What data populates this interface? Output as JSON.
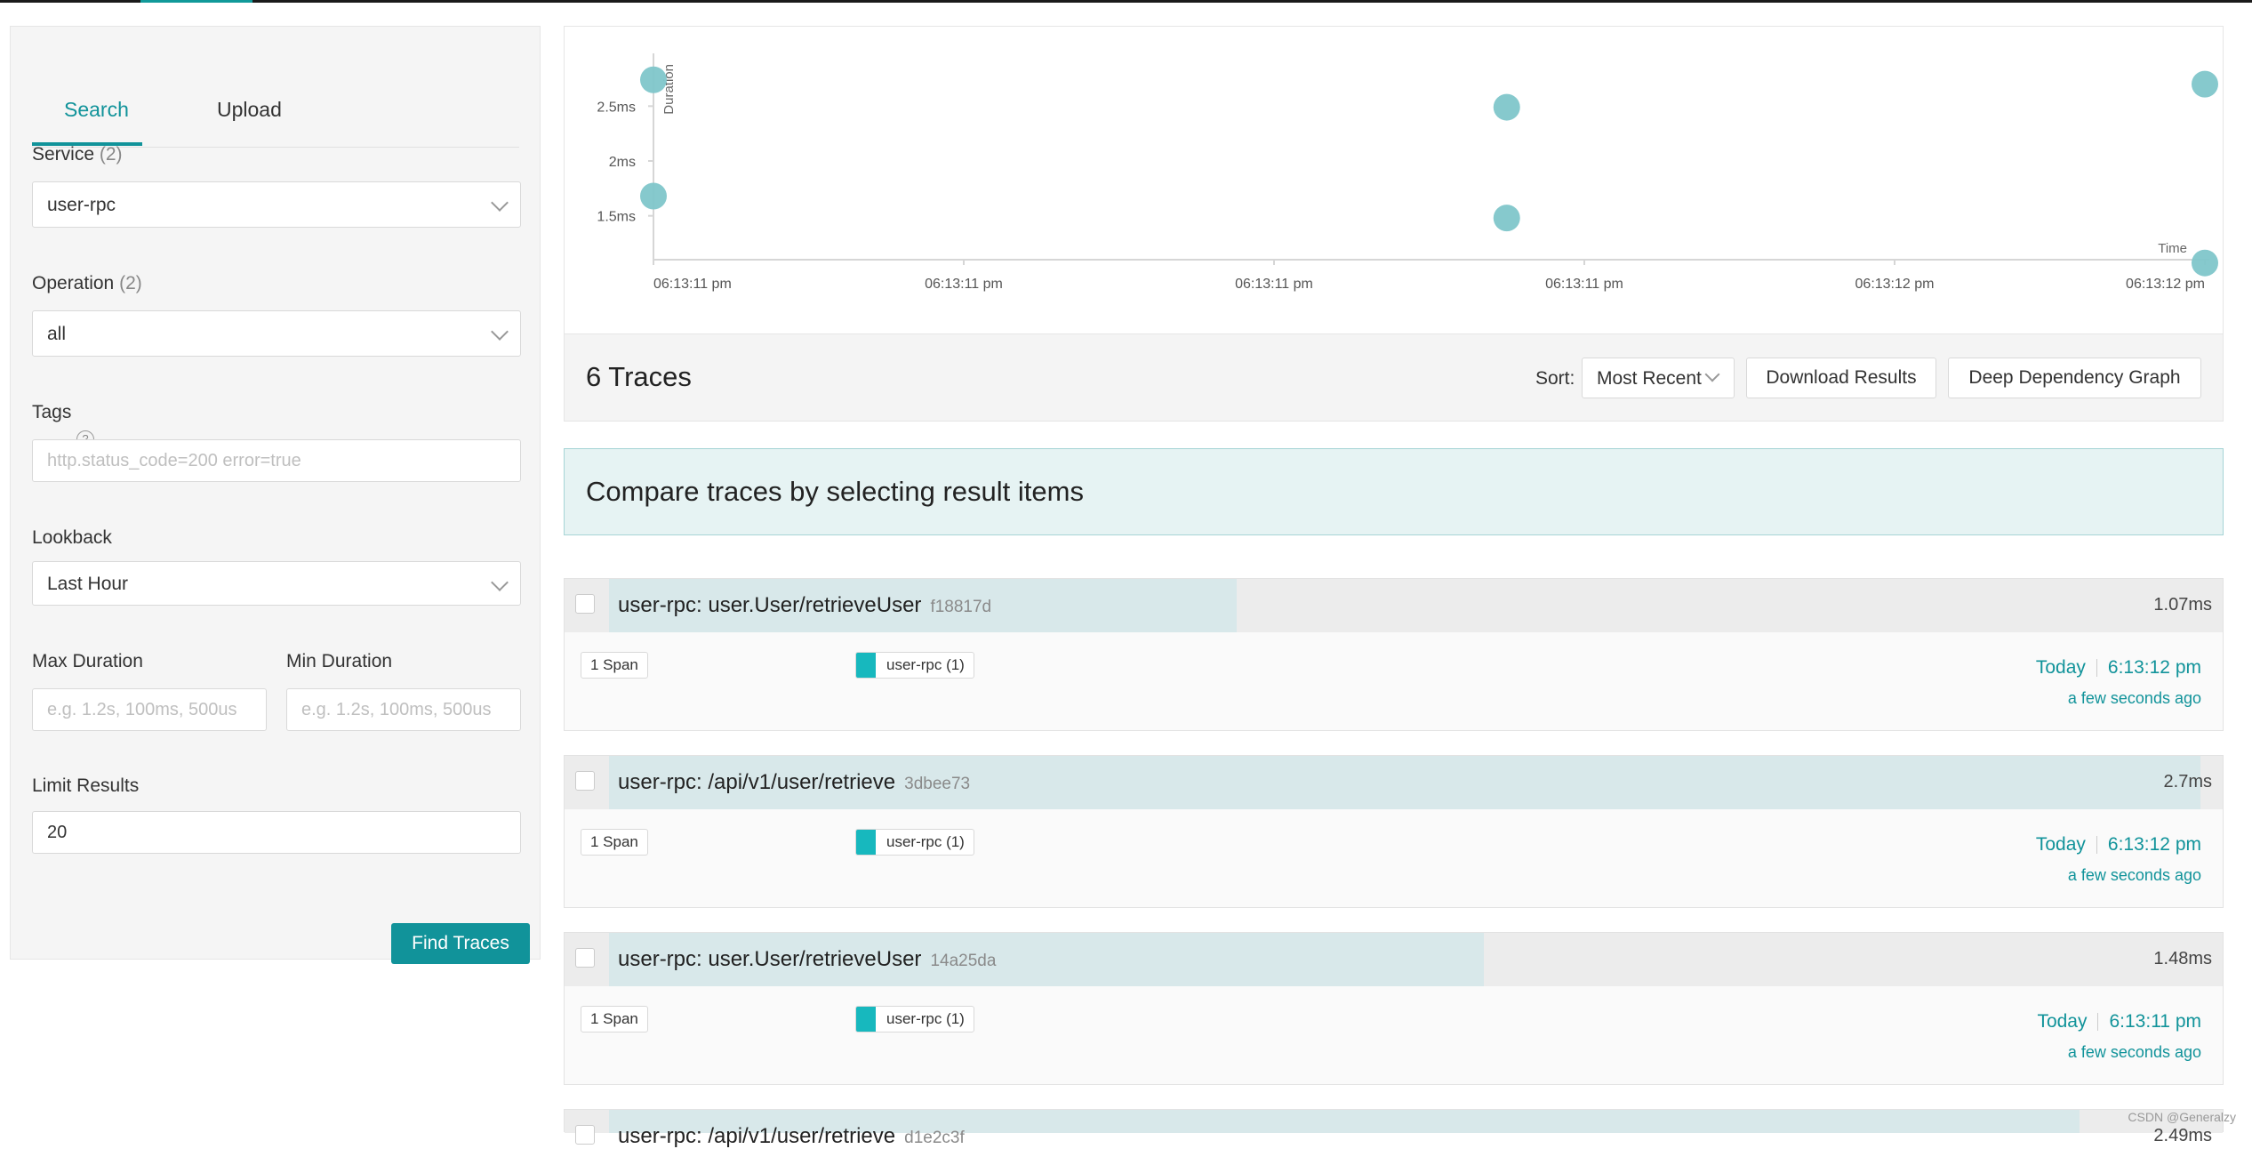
{
  "tabs": {
    "search": "Search",
    "upload": "Upload"
  },
  "form": {
    "service_label": "Service",
    "service_count": "(2)",
    "service_value": "user-rpc",
    "operation_label": "Operation",
    "operation_count": "(2)",
    "operation_value": "all",
    "tags_label": "Tags",
    "tags_help": "?",
    "tags_placeholder": "http.status_code=200 error=true",
    "lookback_label": "Lookback",
    "lookback_value": "Last Hour",
    "max_duration_label": "Max Duration",
    "max_duration_placeholder": "e.g. 1.2s, 100ms, 500us",
    "min_duration_label": "Min Duration",
    "min_duration_placeholder": "e.g. 1.2s, 100ms, 500us",
    "limit_label": "Limit Results",
    "limit_value": "20",
    "find_button": "Find Traces"
  },
  "chart_data": {
    "type": "scatter",
    "ylabel": "Duration",
    "xlabel": "Time",
    "yticks": [
      "1.5ms",
      "2ms",
      "2.5ms"
    ],
    "ytick_values": [
      1.5,
      2.0,
      2.5
    ],
    "xticks": [
      "06:13:11 pm",
      "06:13:11 pm",
      "06:13:11 pm",
      "06:13:11 pm",
      "06:13:12 pm",
      "06:13:12 pm"
    ],
    "ylim": [
      1.1,
      2.9
    ],
    "xlim": [
      0,
      5
    ],
    "points": [
      {
        "x": 0.0,
        "y": 2.74
      },
      {
        "x": 0.0,
        "y": 1.68
      },
      {
        "x": 2.75,
        "y": 2.49
      },
      {
        "x": 2.75,
        "y": 1.48
      },
      {
        "x": 5.0,
        "y": 2.7
      },
      {
        "x": 5.0,
        "y": 1.07
      }
    ],
    "point_color": "#7fc6ca"
  },
  "results": {
    "count_text": "6 Traces",
    "sort_label": "Sort:",
    "sort_value": "Most Recent",
    "download_button": "Download Results",
    "ddg_button": "Deep Dependency Graph",
    "compare_text": "Compare traces by selecting result items"
  },
  "traces": [
    {
      "title": "user-rpc: user.User/retrieveUser",
      "id": "f18817d",
      "duration": "1.07ms",
      "bar_fraction": 0.396,
      "spans": "1 Span",
      "service": "user-rpc (1)",
      "day": "Today",
      "time": "6:13:12 pm",
      "ago": "a few seconds ago"
    },
    {
      "title": "user-rpc: /api/v1/user/retrieve",
      "id": "3dbee73",
      "duration": "2.7ms",
      "bar_fraction": 0.9945,
      "spans": "1 Span",
      "service": "user-rpc (1)",
      "day": "Today",
      "time": "6:13:12 pm",
      "ago": "a few seconds ago"
    },
    {
      "title": "user-rpc: user.User/retrieveUser",
      "id": "14a25da",
      "duration": "1.48ms",
      "bar_fraction": 0.5475,
      "spans": "1 Span",
      "service": "user-rpc (1)",
      "day": "Today",
      "time": "6:13:11 pm",
      "ago": "a few seconds ago"
    },
    {
      "title": "user-rpc: /api/v1/user/retrieve",
      "id": "d1e2c3f",
      "duration": "2.49ms",
      "bar_fraction": 0.92
    }
  ],
  "watermark": "CSDN @Generalzy"
}
